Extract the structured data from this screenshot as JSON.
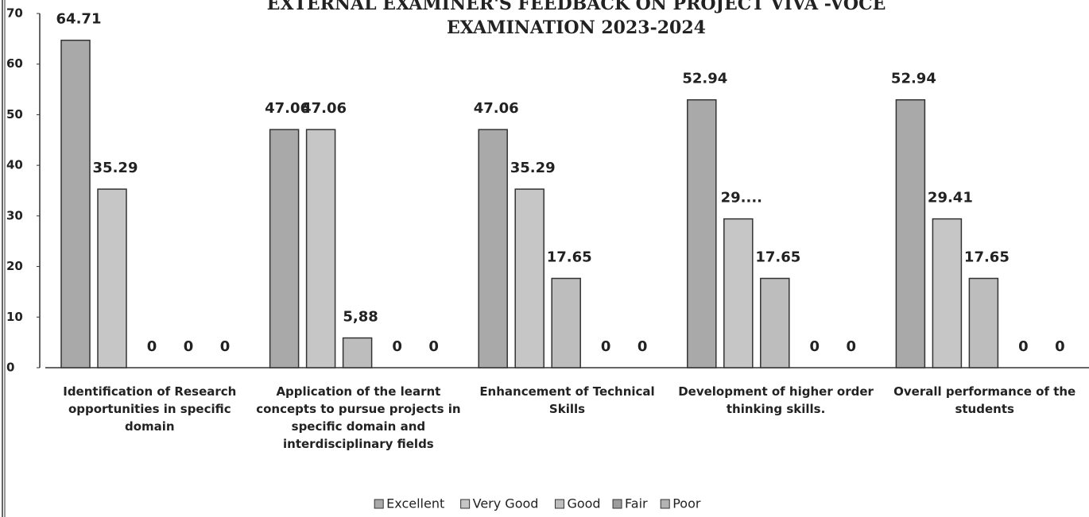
{
  "chart_data": {
    "type": "bar",
    "title": [
      "EXTERNAL EXAMINER'S FEEDBACK ON PROJECT VIVA -VOCE",
      "EXAMINATION  2023-2024"
    ],
    "categories": [
      "Identification of Research opportunities in specific domain",
      "Application of the learnt concepts to pursue projects in specific domain and interdisciplinary fields",
      "Enhancement of Technical Skills",
      "Development of higher order thinking skills.",
      "Overall performance of the students"
    ],
    "series": [
      {
        "name": "Excellent",
        "color": "#a9a9a9",
        "values": [
          64.71,
          47.06,
          47.06,
          52.94,
          52.94
        ]
      },
      {
        "name": "Very Good",
        "color": "#c6c6c6",
        "values": [
          35.29,
          47.06,
          35.29,
          29.41,
          29.41
        ],
        "value_labels": [
          "35.29",
          "47.06",
          "35.29",
          "29....",
          "29.41"
        ]
      },
      {
        "name": "Good",
        "color": "#bdbdbd",
        "values": [
          0,
          5.88,
          17.65,
          17.65,
          17.65
        ],
        "value_labels": [
          "0",
          "5,88",
          "17.65",
          "17.65",
          "17.65"
        ]
      },
      {
        "name": "Fair",
        "color": "#9c9c9c",
        "values": [
          0,
          0,
          0,
          0,
          0
        ]
      },
      {
        "name": "Poor",
        "color": "#b3b3b3",
        "values": [
          0,
          0,
          0,
          0,
          0
        ]
      }
    ],
    "ylim": [
      0,
      70
    ],
    "yticks": [
      0,
      10,
      20,
      30,
      40,
      50,
      60,
      70
    ],
    "legend": "bottom"
  }
}
